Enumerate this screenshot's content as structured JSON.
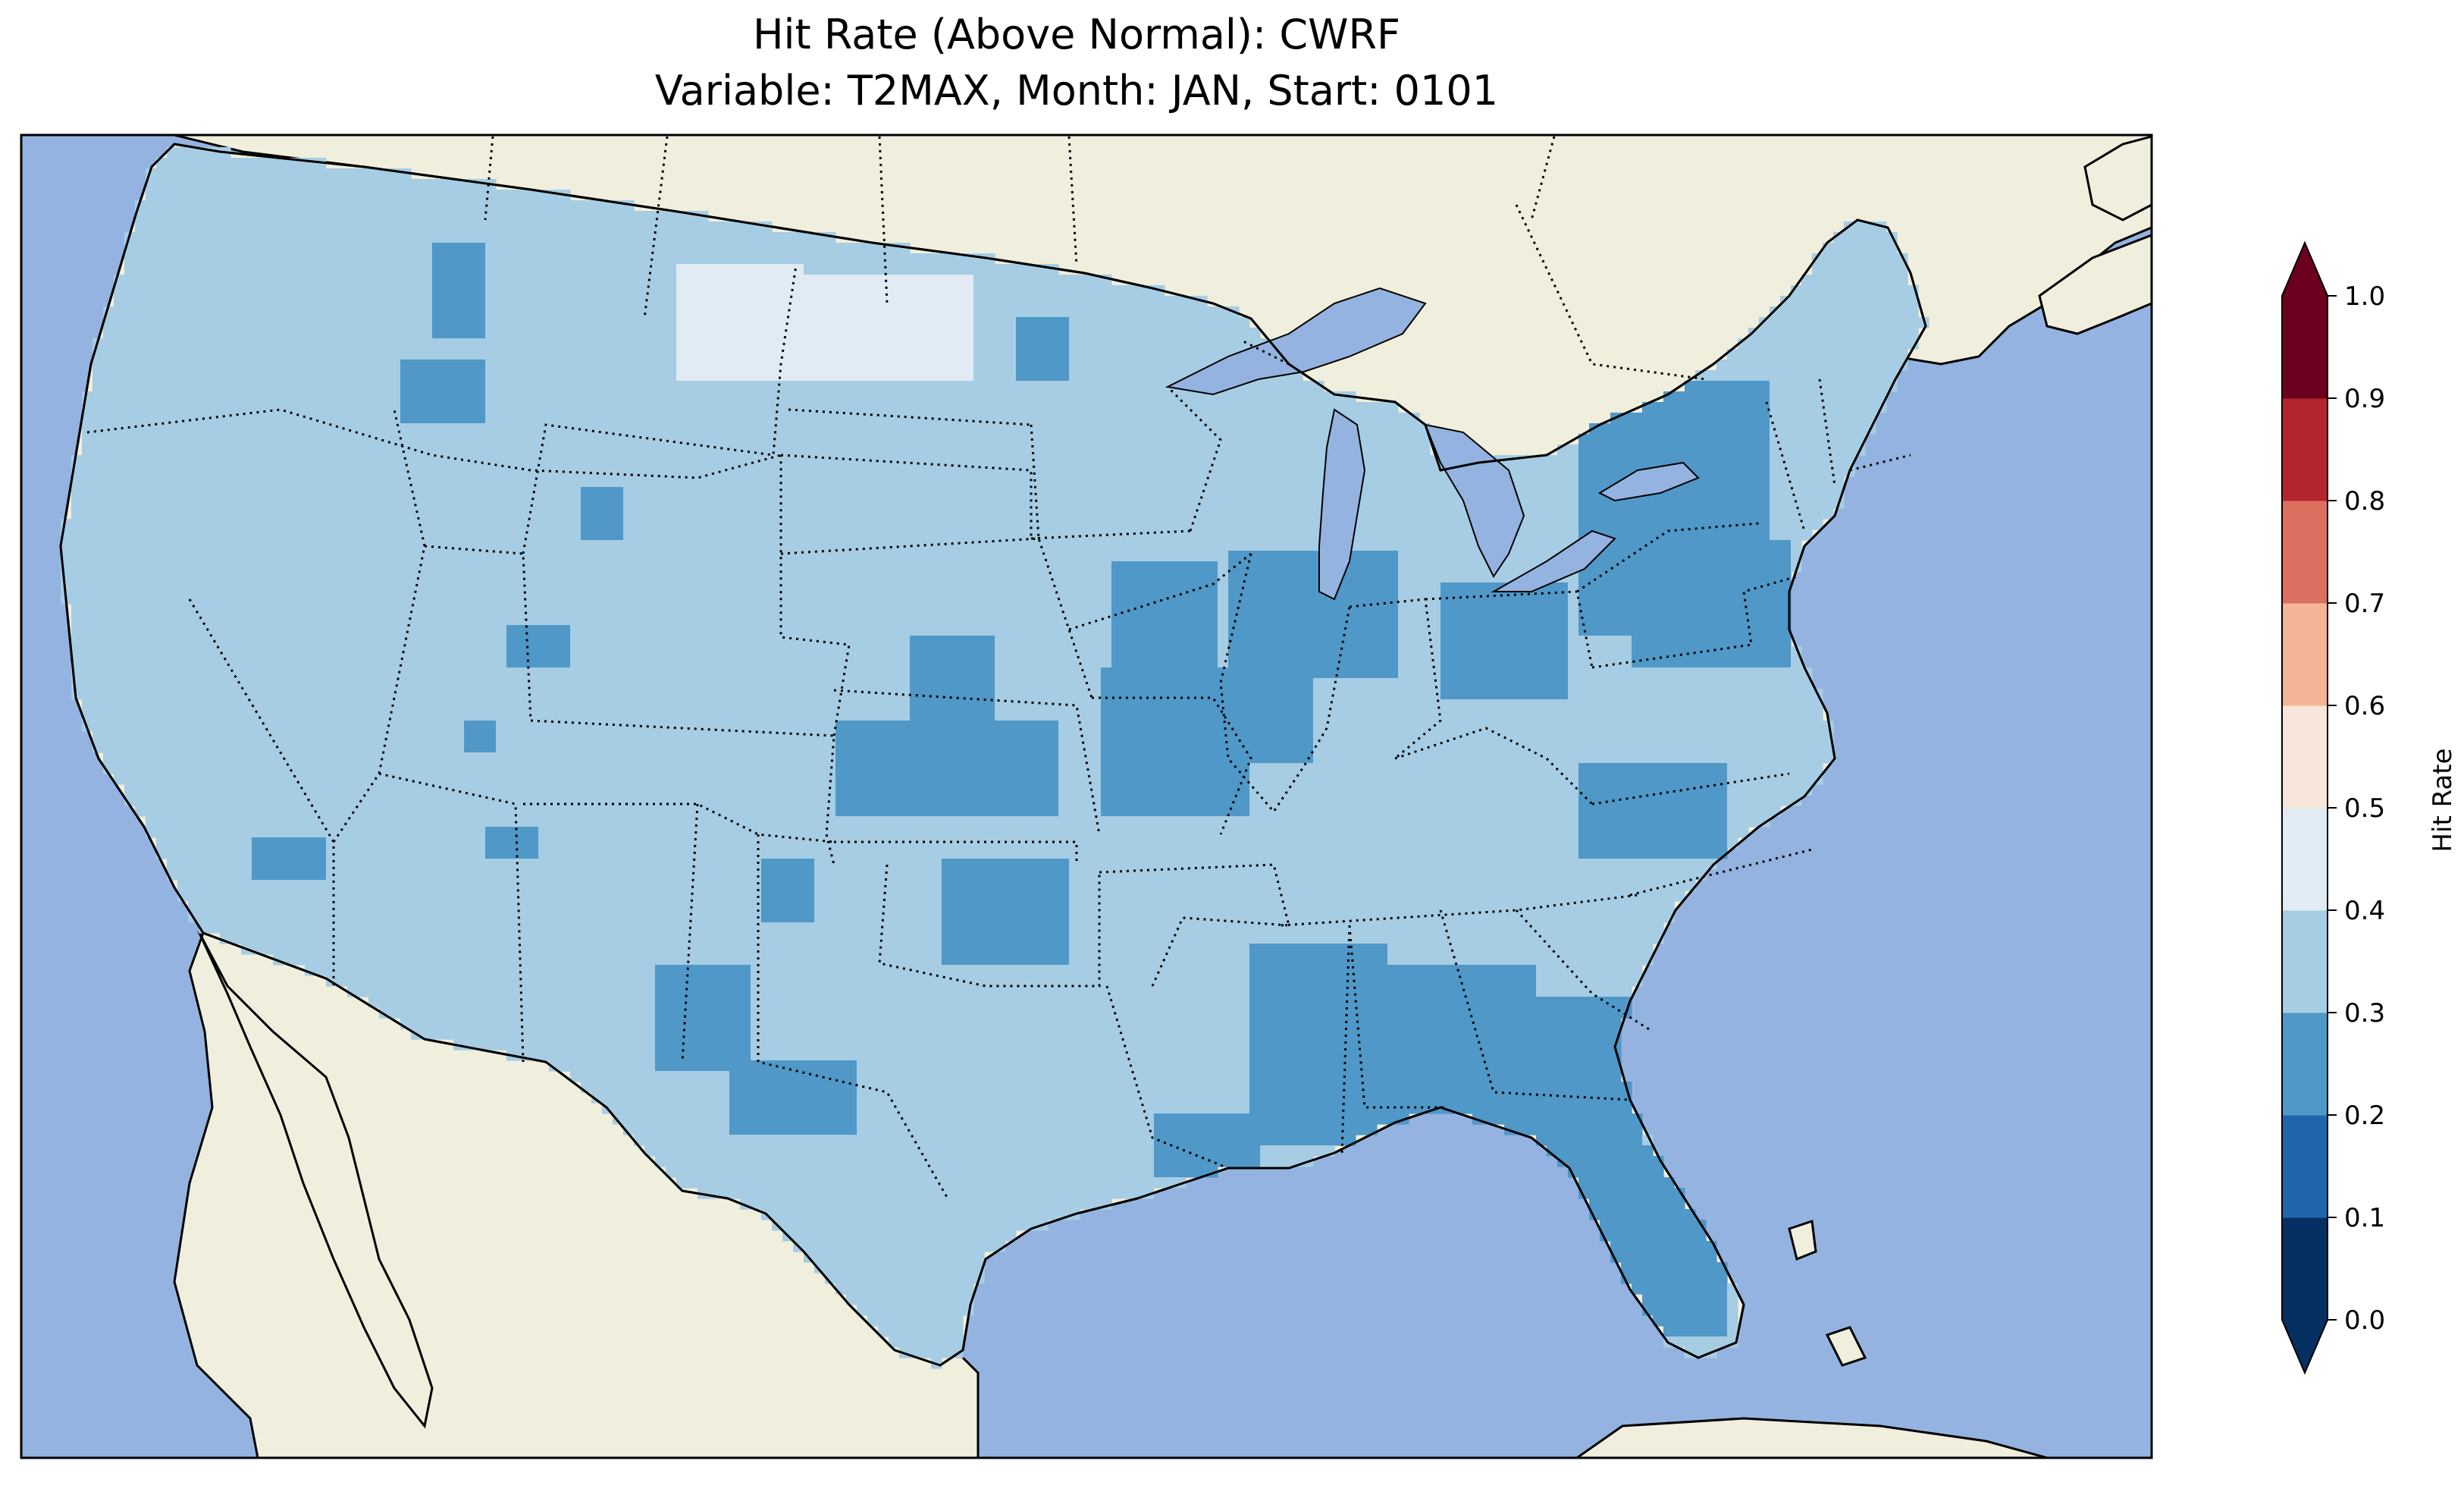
{
  "title_line1": "Hit Rate (Above Normal): CWRF",
  "title_line2": "Variable: T2MAX, Month: JAN, Start: 0101",
  "colors": {
    "ocean": "#94b3e0",
    "land": "#f0eedc",
    "lakes": "#94b3e0",
    "border": "#000000"
  },
  "colorbar": {
    "label": "Hit Rate",
    "ticks": [
      "0.0",
      "0.1",
      "0.2",
      "0.3",
      "0.4",
      "0.5",
      "0.6",
      "0.7",
      "0.8",
      "0.9",
      "1.0"
    ],
    "bins": [
      {
        "range": [
          0.0,
          0.1
        ],
        "color": "#053061"
      },
      {
        "range": [
          0.1,
          0.2
        ],
        "color": "#2166ac"
      },
      {
        "range": [
          0.2,
          0.3
        ],
        "color": "#4f98c8"
      },
      {
        "range": [
          0.3,
          0.4
        ],
        "color": "#a6cde3"
      },
      {
        "range": [
          0.4,
          0.5
        ],
        "color": "#e0ebf3"
      },
      {
        "range": [
          0.5,
          0.6
        ],
        "color": "#f8e6da"
      },
      {
        "range": [
          0.6,
          0.7
        ],
        "color": "#f4b597"
      },
      {
        "range": [
          0.7,
          0.8
        ],
        "color": "#dc7060"
      },
      {
        "range": [
          0.8,
          0.9
        ],
        "color": "#b52530"
      },
      {
        "range": [
          0.9,
          1.0
        ],
        "color": "#6c001f"
      }
    ],
    "extend": "both"
  }
}
